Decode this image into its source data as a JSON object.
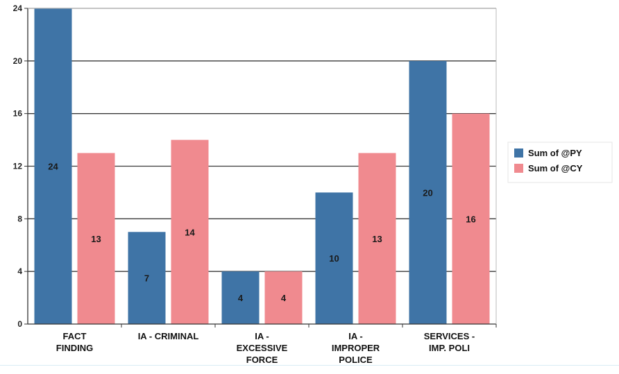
{
  "chart_data": {
    "type": "bar",
    "categories": [
      [
        "FACT",
        "FINDING"
      ],
      [
        "IA - CRIMINAL"
      ],
      [
        "IA -",
        "EXCESSIVE",
        "FORCE"
      ],
      [
        "IA -",
        "IMPROPER",
        "POLICE"
      ],
      [
        "SERVICES -",
        "IMP. POLI"
      ]
    ],
    "series": [
      {
        "name": "Sum of @PY",
        "values": [
          24,
          7,
          4,
          10,
          20
        ],
        "color": "#3f74a6"
      },
      {
        "name": "Sum of @CY",
        "values": [
          13,
          14,
          4,
          13,
          16
        ],
        "color": "#f08a8f"
      }
    ],
    "y_ticks": [
      "0",
      "4",
      "8",
      "12",
      "16",
      "20",
      "24"
    ],
    "ylim": [
      0,
      24
    ],
    "grid": true,
    "legend_position": "right",
    "title": "",
    "xlabel": "",
    "ylabel": ""
  }
}
